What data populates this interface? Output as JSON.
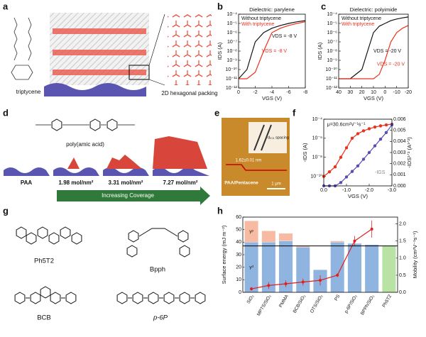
{
  "panel_labels": [
    "a",
    "b",
    "c",
    "d",
    "e",
    "f",
    "g",
    "h"
  ],
  "panel_a": {
    "molecule": "triptycene",
    "packing": "2D hexagonal packing"
  },
  "panel_d": {
    "polymer": "poly(amic acid)",
    "stages": [
      "PAA",
      "1.98 mol/nm²",
      "3.31 mol/nm²",
      "7.27 mol/nm²"
    ],
    "arrow": "Increasing Coverage"
  },
  "panel_e": {
    "step": "1.62±0.01 nm",
    "sample": "PAA/Pentacene",
    "scale": "1 μm",
    "spacing": "d₀₀₁ spacing"
  },
  "panel_g": {
    "molecules": [
      "Ph5T2",
      "Bpph",
      "BCB",
      "p-6P"
    ]
  },
  "chart_data": [
    {
      "type": "line",
      "title": "Dielectric: parylene",
      "xlabel": "VGS (V)",
      "ylabel": "IDS (A)",
      "yscale": "log",
      "x": [
        0,
        -1,
        -2,
        -3,
        -4,
        -5,
        -6,
        -7,
        -8
      ],
      "xlim": [
        0,
        -8
      ],
      "xticks": [
        0,
        -2,
        -4,
        -6,
        -8
      ],
      "ylim": [
        1e-12,
        0.0001
      ],
      "yticks": [
        {
          "value": 1e-12,
          "label": "10⁻¹²"
        },
        {
          "value": 1e-11,
          "label": "10⁻¹¹"
        },
        {
          "value": 1e-10,
          "label": "10⁻¹⁰"
        },
        {
          "value": 1e-09,
          "label": "10⁻⁹"
        },
        {
          "value": 1e-08,
          "label": "10⁻⁸"
        },
        {
          "value": 1e-07,
          "label": "10⁻⁷"
        },
        {
          "value": 1e-06,
          "label": "10⁻⁶"
        },
        {
          "value": 1e-05,
          "label": "10⁻⁵"
        },
        {
          "value": 0.0001,
          "label": "10⁻⁴"
        }
      ],
      "series": [
        {
          "name": "Without triptycene",
          "color": "#111111",
          "values": [
            1e-11,
            1e-10,
            1e-07,
            1e-06,
            3e-06,
            6e-06,
            1e-05,
            1.5e-05,
            2e-05
          ]
        },
        {
          "name": "With triptycene",
          "color": "#e8321e",
          "values": [
            1e-11,
            1e-11,
            5e-11,
            1e-08,
            1e-06,
            3e-06,
            6e-06,
            1e-05,
            1.5e-05
          ]
        }
      ],
      "annotations": [
        {
          "text": "VDS = -8 V",
          "color": "#111111"
        },
        {
          "text": "VDS = -8 V",
          "color": "#e8321e"
        }
      ]
    },
    {
      "type": "line",
      "title": "Dielectric: polyimide",
      "xlabel": "VGS (V)",
      "ylabel": "IDS (A)",
      "yscale": "log",
      "x": [
        40,
        30,
        20,
        15,
        10,
        5,
        0,
        -5,
        -10,
        -15,
        -20
      ],
      "xlim": [
        40,
        -20
      ],
      "xticks": [
        40,
        30,
        20,
        10,
        0,
        -10,
        -20
      ],
      "ylim": [
        1e-12,
        0.0001
      ],
      "yticks": [
        {
          "value": 1e-12,
          "label": "10⁻¹²"
        },
        {
          "value": 1e-11,
          "label": "10⁻¹¹"
        },
        {
          "value": 1e-10,
          "label": "10⁻¹⁰"
        },
        {
          "value": 1e-09,
          "label": "10⁻⁹"
        },
        {
          "value": 1e-08,
          "label": "10⁻⁸"
        },
        {
          "value": 1e-07,
          "label": "10⁻⁷"
        },
        {
          "value": 1e-06,
          "label": "10⁻⁶"
        },
        {
          "value": 1e-05,
          "label": "10⁻⁵"
        },
        {
          "value": 0.0001,
          "label": "10⁻⁴"
        }
      ],
      "series": [
        {
          "name": "Without triptycene",
          "color": "#111111",
          "values": [
            1e-11,
            1e-11,
            1e-10,
            1e-08,
            1e-06,
            5e-06,
            1e-05,
            2e-05,
            3e-05,
            4e-05,
            5e-05
          ]
        },
        {
          "name": "With triptycene",
          "color": "#e8321e",
          "values": [
            1e-11,
            1e-11,
            1e-11,
            1e-11,
            1e-11,
            3e-11,
            1e-09,
            1e-07,
            1e-06,
            3e-06,
            6e-06
          ]
        }
      ],
      "annotations": [
        {
          "text": "VDS = -20 V",
          "color": "#111111"
        },
        {
          "text": "VDS = -20 V",
          "color": "#e8321e"
        }
      ]
    },
    {
      "type": "line",
      "xlabel": "VGS (V)",
      "ylabel": "-IDS (A)",
      "y2label": "-IDS¹ᐟ² (A¹ᐟ²)",
      "yscale": "log",
      "markers": true,
      "x": [
        0,
        -0.25,
        -0.5,
        -0.75,
        -1,
        -1.25,
        -1.5,
        -1.75,
        -2,
        -2.25,
        -2.5,
        -2.75,
        -3
      ],
      "xlim": [
        0,
        -3
      ],
      "xticks": [
        {
          "value": 0,
          "label": "0.0"
        },
        {
          "value": -1,
          "label": "-1.0"
        },
        {
          "value": -2,
          "label": "-2.0"
        },
        {
          "value": -3,
          "label": "-3.0"
        }
      ],
      "ylim": [
        1e-11,
        0.0001
      ],
      "yticks": [
        {
          "value": 1e-10,
          "label": "10⁻¹⁰"
        },
        {
          "value": 1e-08,
          "label": "10⁻⁸"
        },
        {
          "value": 1e-06,
          "label": "10⁻⁶"
        },
        {
          "value": 0.0001,
          "label": "10⁻⁴"
        }
      ],
      "y2lim": [
        0,
        0.006
      ],
      "y2ticks": [
        {
          "value": 0,
          "label": "0.000"
        },
        0.001,
        0.002,
        0.003,
        0.004,
        0.005,
        0.006
      ],
      "series": [
        {
          "color": "#e8321e",
          "values": [
            1e-10,
            3e-10,
            1e-09,
            1e-08,
            1e-07,
            1e-06,
            3e-06,
            6e-06,
            1e-05,
            1.5e-05,
            2e-05,
            2.5e-05,
            3e-05
          ]
        },
        {
          "color": "#5a4fb0",
          "axis": "y2",
          "values": [
            0,
            0,
            0,
            0.0003,
            0.0008,
            0.0013,
            0.0018,
            0.0024,
            0.003,
            0.0036,
            0.0042,
            0.0048,
            0.0055
          ]
        }
      ],
      "annotations": [
        {
          "text": "μ=30.6cm²V⁻¹s⁻¹",
          "color": "#111111"
        },
        {
          "text": "-IGS",
          "color": "#888888"
        }
      ]
    },
    {
      "type": "bar",
      "ylabel": "Surface energy (mJ m⁻²)",
      "y2label": "Mobility (cm²V⁻¹s⁻¹)",
      "categories": [
        "SiO₂",
        "MPTS/SiO₂",
        "PMMA",
        "BCB/SiO₂",
        "OTS/SiO₂",
        "PS",
        "p-6P/SiO₂",
        "BPPh/SiO₂",
        "Ph5T2"
      ],
      "ylim": [
        0,
        60
      ],
      "yticks": [
        0,
        10,
        20,
        30,
        40,
        50,
        60
      ],
      "y2lim": [
        0,
        2.2
      ],
      "y2ticks": [
        {
          "value": 0,
          "label": "0.0"
        },
        0.5,
        {
          "value": 1,
          "label": "1.0"
        },
        1.5,
        {
          "value": 2,
          "label": "2.0"
        }
      ],
      "hline": 37,
      "series": [
        {
          "name": "γᵈ",
          "colors": [
            "#8fb4e0",
            "#8fb4e0",
            "#8fb4e0",
            "#8fb4e0",
            "#8fb4e0",
            "#8fb4e0",
            "#8fb4e0",
            "#8fb4e0",
            "#b9e3a4"
          ],
          "values": [
            40,
            40,
            41,
            36,
            18,
            40,
            39,
            38,
            37
          ]
        },
        {
          "name": "γᵖ",
          "color": "#f6bba2",
          "values": [
            17,
            9,
            6,
            1,
            0,
            1,
            0,
            0,
            0
          ]
        },
        {
          "color": "#e02020",
          "axis": "y2",
          "values": [
            0.1,
            0.2,
            0.25,
            0.3,
            0.35,
            0.5,
            1.5,
            1.85,
            null
          ],
          "errors": [
            0.05,
            0.1,
            0.1,
            0.1,
            0.15,
            0.05,
            0.15,
            0.25,
            null
          ]
        }
      ]
    }
  ]
}
